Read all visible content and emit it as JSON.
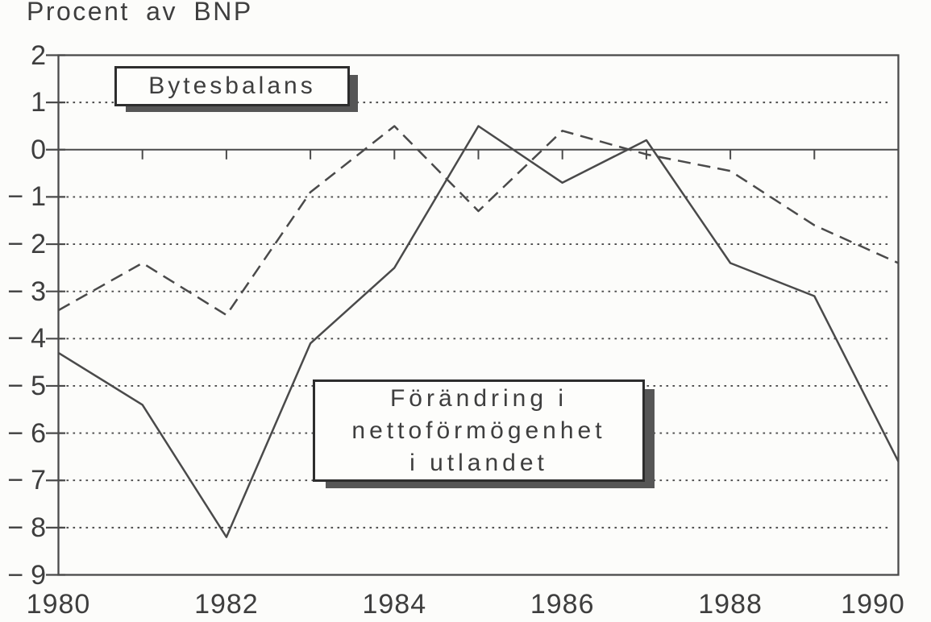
{
  "chart_data": {
    "type": "line",
    "title": "Procent av BNP",
    "x": [
      1980,
      1981,
      1982,
      1983,
      1984,
      1985,
      1986,
      1987,
      1988,
      1989,
      1990
    ],
    "xlim": [
      1980,
      1990
    ],
    "ylim": [
      -9,
      2
    ],
    "yticks": [
      2,
      1,
      0,
      -1,
      -2,
      -3,
      -4,
      -5,
      -6,
      -7,
      -8,
      -9
    ],
    "xtick_labels": [
      "1980",
      "1982",
      "1984",
      "1986",
      "1988",
      "1990"
    ],
    "grid": "horizontal dotted line at each integer; zero line solid; outer box solid",
    "legend_position": "floating shadowed boxes inside plot",
    "series": [
      {
        "name": "Bytesbalans",
        "line_style": "dashed",
        "values": [
          -3.4,
          -2.4,
          -3.5,
          -0.9,
          0.5,
          -1.3,
          0.4,
          -0.1,
          -0.45,
          -1.6,
          -2.4
        ]
      },
      {
        "name": "Förändring i nettoförmögenhet i utlandet",
        "line_style": "solid",
        "values": [
          -4.3,
          -5.4,
          -8.2,
          -4.1,
          -2.5,
          0.5,
          -0.7,
          0.2,
          -2.4,
          -3.1,
          -6.6
        ]
      }
    ]
  },
  "legend": {
    "bytesbalans": {
      "label": "Bytesbalans"
    },
    "forandring": {
      "lines": [
        "Förändring i",
        "nettoförmögenhet",
        "i utlandet"
      ]
    }
  },
  "colors": {
    "ink": "#3e3e3e",
    "line": "#4a4a4a",
    "background": "#fcfcfa",
    "box_border": "#2d2d2d",
    "box_shadow": "#565656"
  }
}
